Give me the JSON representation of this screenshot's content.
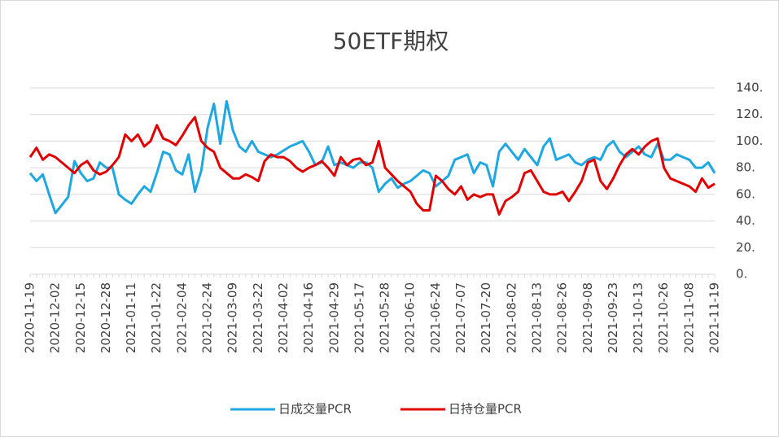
{
  "chart_data": {
    "type": "line",
    "title": "50ETF期权",
    "categories": [
      "2020-11-19",
      null,
      null,
      null,
      "2020-12-02",
      null,
      null,
      null,
      "2020-12-15",
      null,
      null,
      null,
      "2020-12-28",
      null,
      null,
      null,
      "2021-01-11",
      null,
      null,
      null,
      "2021-01-22",
      null,
      null,
      null,
      "2021-02-04",
      null,
      null,
      null,
      "2021-02-24",
      null,
      null,
      null,
      "2021-03-09",
      null,
      null,
      null,
      "2021-03-22",
      null,
      null,
      null,
      "2021-04-02",
      null,
      null,
      null,
      "2021-04-16",
      null,
      null,
      null,
      "2021-04-29",
      null,
      null,
      null,
      "2021-05-17",
      null,
      null,
      null,
      "2021-05-28",
      null,
      null,
      null,
      "2021-06-10",
      null,
      null,
      null,
      "2021-06-24",
      null,
      null,
      null,
      "2021-07-07",
      null,
      null,
      null,
      "2021-07-20",
      null,
      null,
      null,
      "2021-08-02",
      null,
      null,
      null,
      "2021-08-13",
      null,
      null,
      null,
      "2021-08-26",
      null,
      null,
      null,
      "2021-09-08",
      null,
      null,
      null,
      "2021-09-23",
      null,
      null,
      null,
      "2021-10-13",
      null,
      null,
      null,
      "2021-10-26",
      null,
      null,
      null,
      "2021-11-08",
      null,
      null,
      null,
      "2021-11-19"
    ],
    "series": [
      {
        "name": "日成交量PCR",
        "color": "#1ea7e1",
        "values": [
          76,
          70,
          75,
          60,
          46,
          52,
          58,
          85,
          76,
          70,
          72,
          84,
          80,
          80,
          60,
          56,
          53,
          60,
          66,
          62,
          76,
          92,
          90,
          78,
          75,
          90,
          62,
          78,
          110,
          128,
          98,
          130,
          108,
          96,
          92,
          100,
          92,
          90,
          88,
          90,
          93,
          96,
          98,
          100,
          92,
          82,
          84,
          96,
          82,
          84,
          82,
          80,
          84,
          84,
          80,
          62,
          68,
          72,
          65,
          68,
          70,
          74,
          78,
          76,
          66,
          70,
          74,
          86,
          88,
          90,
          76,
          84,
          82,
          66,
          92,
          98,
          92,
          86,
          94,
          88,
          82,
          96,
          102,
          86,
          88,
          90,
          84,
          82,
          86,
          88,
          86,
          96,
          100,
          92,
          88,
          92,
          96,
          90,
          88,
          98,
          86,
          86,
          90,
          88,
          86,
          80,
          80,
          84,
          76
        ]
      },
      {
        "name": "日持仓量PCR",
        "color": "#e00000",
        "values": [
          88,
          95,
          86,
          90,
          88,
          84,
          80,
          76,
          82,
          85,
          78,
          75,
          77,
          82,
          88,
          105,
          100,
          105,
          96,
          100,
          112,
          102,
          100,
          97,
          104,
          112,
          118,
          100,
          95,
          92,
          80,
          76,
          72,
          72,
          75,
          73,
          70,
          85,
          90,
          88,
          88,
          85,
          80,
          77,
          80,
          82,
          85,
          80,
          74,
          88,
          82,
          86,
          87,
          82,
          84,
          100,
          80,
          75,
          70,
          66,
          62,
          53,
          48,
          48,
          74,
          70,
          64,
          60,
          66,
          56,
          60,
          58,
          60,
          60,
          45,
          55,
          58,
          62,
          76,
          78,
          70,
          62,
          60,
          60,
          62,
          55,
          62,
          70,
          84,
          86,
          70,
          64,
          72,
          82,
          90,
          94,
          90,
          96,
          100,
          102,
          80,
          72,
          70,
          68,
          66,
          62,
          72,
          65,
          68
        ]
      }
    ],
    "ylim": [
      0,
      140
    ],
    "yticks": [
      {
        "value": 0,
        "label": "0."
      },
      {
        "value": 20,
        "label": "20."
      },
      {
        "value": 40,
        "label": "40."
      },
      {
        "value": 60,
        "label": "60."
      },
      {
        "value": 80,
        "label": "80."
      },
      {
        "value": 100,
        "label": "100."
      },
      {
        "value": 120,
        "label": "120."
      },
      {
        "value": 140,
        "label": "140."
      }
    ],
    "grid": true,
    "legend": "bottom"
  }
}
